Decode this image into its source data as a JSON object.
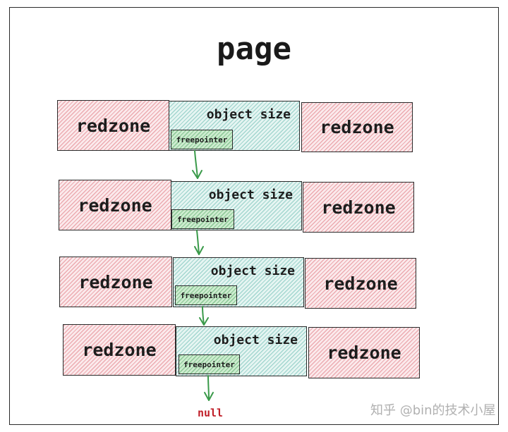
{
  "title": "page",
  "rows": [
    {
      "left_label": "redzone",
      "object_label": "object size",
      "pointer_label": "freepointer",
      "right_label": "redzone"
    },
    {
      "left_label": "redzone",
      "object_label": "object size",
      "pointer_label": "freepointer",
      "right_label": "redzone"
    },
    {
      "left_label": "redzone",
      "object_label": "object size",
      "pointer_label": "freepointer",
      "right_label": "redzone"
    },
    {
      "left_label": "redzone",
      "object_label": "object size",
      "pointer_label": "freepointer",
      "right_label": "redzone"
    }
  ],
  "terminator": "null",
  "watermark": "知乎 @bin的技术小屋",
  "colors": {
    "redzone_fill": "#fbeaec",
    "object_fill": "#e6f5f2",
    "pointer_fill": "#cdeccf",
    "arrow": "#3a9a4a",
    "null_text": "#c0202a"
  }
}
